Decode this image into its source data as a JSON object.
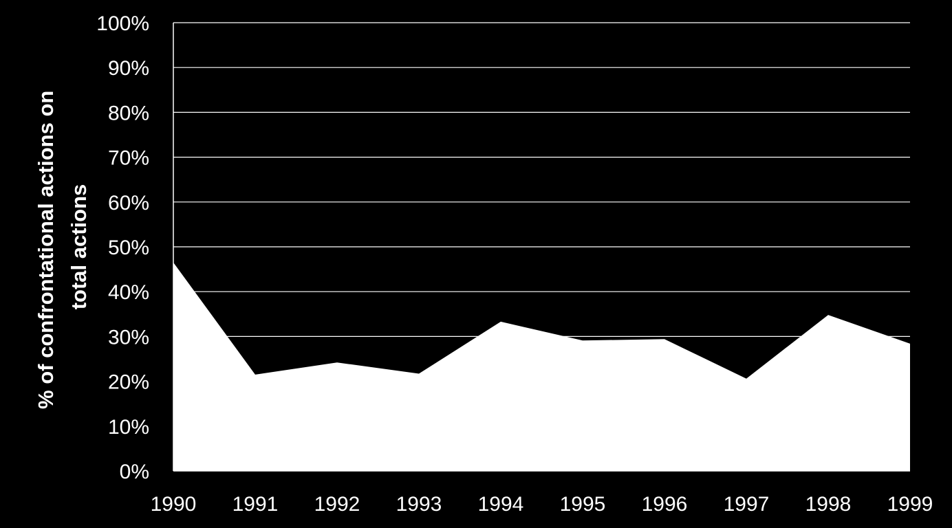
{
  "chart_data": {
    "type": "area",
    "title": "",
    "xlabel": "",
    "ylabel_lines": [
      "% of confrontational  actions on",
      "total actions"
    ],
    "categories": [
      "1990",
      "1991",
      "1992",
      "1993",
      "1994",
      "1995",
      "1996",
      "1997",
      "1998",
      "1999"
    ],
    "series": [
      {
        "values": [
          46.5,
          21.5,
          24.2,
          21.7,
          33.3,
          29.1,
          29.4,
          20.6,
          34.8,
          28.4
        ]
      }
    ],
    "ylim": [
      0,
      100
    ],
    "yticks": [
      0,
      10,
      20,
      30,
      40,
      50,
      60,
      70,
      80,
      90,
      100
    ],
    "ytick_suffix": "%",
    "grid": true,
    "legend": "none",
    "colors": {
      "background": "#000000",
      "area": "#ffffff",
      "grid": "#ffffff",
      "text": "#ffffff"
    }
  }
}
